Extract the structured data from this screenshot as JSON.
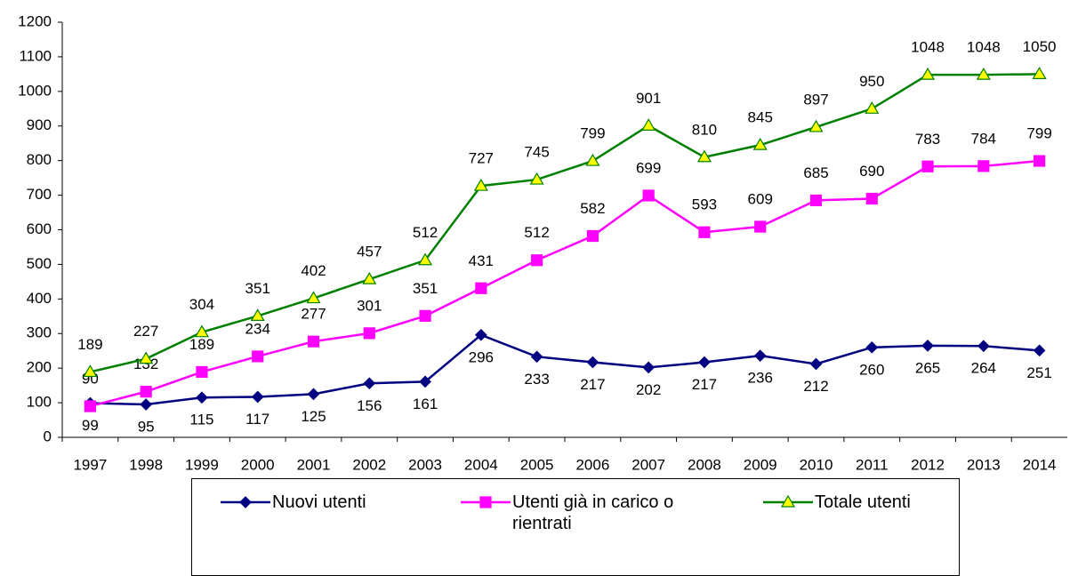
{
  "chart_data": {
    "type": "line",
    "categories": [
      "1997",
      "1998",
      "1999",
      "2000",
      "2001",
      "2002",
      "2003",
      "2004",
      "2005",
      "2006",
      "2007",
      "2008",
      "2009",
      "2010",
      "2011",
      "2012",
      "2013",
      "2014"
    ],
    "series": [
      {
        "name": "Nuovi utenti",
        "color": "#000080",
        "marker": "diamond",
        "marker_fill": "#000080",
        "label_position": "below",
        "values": [
          99,
          95,
          115,
          117,
          125,
          156,
          161,
          296,
          233,
          217,
          202,
          217,
          236,
          212,
          260,
          265,
          264,
          251
        ]
      },
      {
        "name": "Utenti già in carico o rientrati",
        "color": "#ff00ff",
        "marker": "square",
        "marker_fill": "#ff00ff",
        "label_position": "above",
        "values": [
          90,
          132,
          189,
          234,
          277,
          301,
          351,
          431,
          512,
          582,
          699,
          593,
          609,
          685,
          690,
          783,
          784,
          799
        ]
      },
      {
        "name": "Totale utenti",
        "color": "#008000",
        "marker": "triangle",
        "marker_fill": "#ffff00",
        "label_position": "above",
        "values": [
          189,
          227,
          304,
          351,
          402,
          457,
          512,
          727,
          745,
          799,
          901,
          810,
          845,
          897,
          950,
          1048,
          1048,
          1050
        ]
      }
    ],
    "ylim": [
      0,
      1200
    ],
    "yticks": [
      0,
      100,
      200,
      300,
      400,
      500,
      600,
      700,
      800,
      900,
      1000,
      1100,
      1200
    ],
    "grid": false
  }
}
